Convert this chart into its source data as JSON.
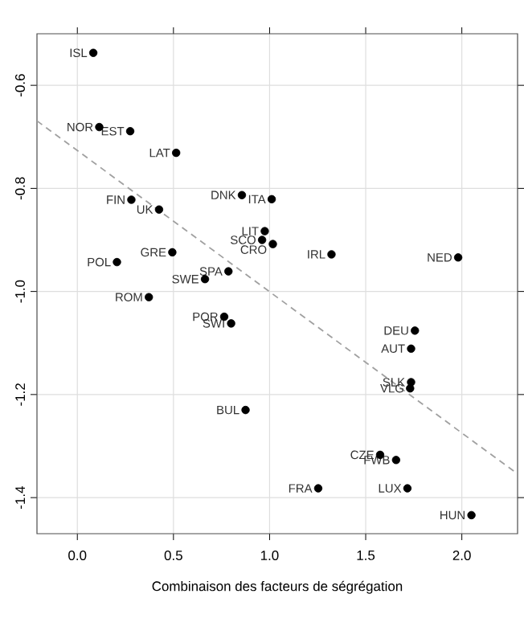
{
  "chart_data": {
    "type": "scatter",
    "xlabel": "Combinaison des facteurs de ségrégation",
    "xlim": [
      -0.21,
      2.29
    ],
    "ylim": [
      -1.47,
      -0.5
    ],
    "xticks": [
      {
        "value": 0,
        "label": "0.0"
      },
      0.5,
      {
        "value": 1,
        "label": "1.0"
      },
      1.5,
      {
        "value": 2,
        "label": "2.0"
      }
    ],
    "yticks": [
      -0.6,
      -0.8,
      {
        "value": -1,
        "label": "-1.0"
      },
      -1.2,
      -1.4
    ],
    "grid": true,
    "marker": "circle",
    "series": [
      {
        "color": "#000000",
        "x": [
          0.083,
          0.114,
          0.275,
          0.514,
          0.281,
          0.425,
          0.856,
          1.011,
          0.975,
          0.961,
          1.017,
          0.494,
          0.206,
          0.786,
          0.664,
          0.372,
          0.764,
          0.8,
          0.875,
          1.322,
          1.981,
          1.756,
          1.736,
          1.736,
          1.731,
          1.575,
          1.658,
          1.253,
          1.717,
          2.05
        ],
        "values": [
          -0.537,
          -0.681,
          -0.689,
          -0.731,
          -0.822,
          -0.841,
          -0.813,
          -0.821,
          -0.883,
          -0.9,
          -0.908,
          -0.924,
          -0.943,
          -0.961,
          -0.976,
          -1.011,
          -1.049,
          -1.062,
          -1.23,
          -0.928,
          -0.934,
          -1.076,
          -1.111,
          -1.176,
          -1.188,
          -1.317,
          -1.327,
          -1.382,
          -1.382,
          -1.434
        ]
      },
      {
        "type": "line",
        "color": "#a0a0a0",
        "line_style": "dashed",
        "marker": "none",
        "x": [
          -0.21,
          2.29
        ],
        "values": [
          -0.669,
          -1.354
        ]
      }
    ],
    "annotations": [
      {
        "text": "ISL",
        "x": 0.083,
        "y": -0.537
      },
      {
        "text": "NOR",
        "x": 0.114,
        "y": -0.681
      },
      {
        "text": "EST",
        "x": 0.275,
        "y": -0.689
      },
      {
        "text": "LAT",
        "x": 0.514,
        "y": -0.731
      },
      {
        "text": "FIN",
        "x": 0.281,
        "y": -0.822
      },
      {
        "text": "UK",
        "x": 0.425,
        "y": -0.841
      },
      {
        "text": "DNK",
        "x": 0.856,
        "y": -0.813
      },
      {
        "text": "ITA",
        "x": 1.011,
        "y": -0.821
      },
      {
        "text": "LIT",
        "x": 0.975,
        "y": -0.883
      },
      {
        "text": "SCO",
        "x": 0.961,
        "y": -0.9
      },
      {
        "text": "CRO",
        "x": 1.017,
        "y": -0.908
      },
      {
        "text": "GRE",
        "x": 0.494,
        "y": -0.924
      },
      {
        "text": "POL",
        "x": 0.206,
        "y": -0.943
      },
      {
        "text": "SPA",
        "x": 0.786,
        "y": -0.961
      },
      {
        "text": "SWE",
        "x": 0.664,
        "y": -0.976
      },
      {
        "text": "ROM",
        "x": 0.372,
        "y": -1.011
      },
      {
        "text": "POR",
        "x": 0.764,
        "y": -1.049
      },
      {
        "text": "SWI",
        "x": 0.8,
        "y": -1.062
      },
      {
        "text": "BUL",
        "x": 0.875,
        "y": -1.23
      },
      {
        "text": "IRL",
        "x": 1.322,
        "y": -0.928
      },
      {
        "text": "NED",
        "x": 1.981,
        "y": -0.934
      },
      {
        "text": "DEU",
        "x": 1.756,
        "y": -1.076
      },
      {
        "text": "AUT",
        "x": 1.736,
        "y": -1.111
      },
      {
        "text": "SLK",
        "x": 1.736,
        "y": -1.176
      },
      {
        "text": "VLG",
        "x": 1.731,
        "y": -1.188
      },
      {
        "text": "CZE",
        "x": 1.575,
        "y": -1.317
      },
      {
        "text": "FWB",
        "x": 1.658,
        "y": -1.327
      },
      {
        "text": "FRA",
        "x": 1.253,
        "y": -1.382
      },
      {
        "text": "LUX",
        "x": 1.717,
        "y": -1.382
      },
      {
        "text": "HUN",
        "x": 2.05,
        "y": -1.434
      }
    ]
  }
}
